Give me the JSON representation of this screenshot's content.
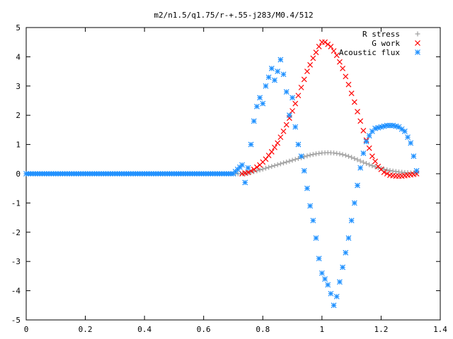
{
  "chart_data": {
    "type": "scatter",
    "title": "m2/n1.5/q1.75/r-+.55-j283/M0.4/512",
    "xlabel": "",
    "ylabel": "",
    "xlim": [
      0,
      1.4
    ],
    "ylim": [
      -5,
      5
    ],
    "x_ticks": [
      "0",
      "0.2",
      "0.4",
      "0.6",
      "0.8",
      "1",
      "1.2",
      "1.4"
    ],
    "y_ticks": [
      "-5",
      "-4",
      "-3",
      "-2",
      "-1",
      "0",
      "1",
      "2",
      "3",
      "4",
      "5"
    ],
    "grid": false,
    "legend_position": "top-right",
    "series": [
      {
        "name": "R stress",
        "marker": "plus",
        "color": "#a0a0a0",
        "points": [
          [
            0.0,
            0
          ],
          [
            0.1,
            0
          ],
          [
            0.2,
            0
          ],
          [
            0.3,
            0
          ],
          [
            0.4,
            0
          ],
          [
            0.5,
            0
          ],
          [
            0.6,
            0
          ],
          [
            0.7,
            0
          ],
          [
            0.74,
            0.0
          ],
          [
            0.76,
            0.05
          ],
          [
            0.78,
            0.1
          ],
          [
            0.8,
            0.16
          ],
          [
            0.82,
            0.22
          ],
          [
            0.84,
            0.28
          ],
          [
            0.86,
            0.34
          ],
          [
            0.88,
            0.4
          ],
          [
            0.9,
            0.46
          ],
          [
            0.92,
            0.52
          ],
          [
            0.94,
            0.58
          ],
          [
            0.96,
            0.64
          ],
          [
            0.98,
            0.68
          ],
          [
            1.0,
            0.71
          ],
          [
            1.02,
            0.72
          ],
          [
            1.04,
            0.71
          ],
          [
            1.06,
            0.68
          ],
          [
            1.08,
            0.63
          ],
          [
            1.1,
            0.56
          ],
          [
            1.12,
            0.48
          ],
          [
            1.14,
            0.39
          ],
          [
            1.16,
            0.31
          ],
          [
            1.18,
            0.24
          ],
          [
            1.2,
            0.18
          ],
          [
            1.22,
            0.13
          ],
          [
            1.24,
            0.09
          ],
          [
            1.26,
            0.06
          ],
          [
            1.28,
            0.04
          ],
          [
            1.3,
            0.03
          ],
          [
            1.32,
            0.02
          ]
        ]
      },
      {
        "name": "G work",
        "marker": "cross",
        "color": "#ff0000",
        "points": [
          [
            0.73,
            0.0
          ],
          [
            0.75,
            0.05
          ],
          [
            0.77,
            0.15
          ],
          [
            0.79,
            0.3
          ],
          [
            0.81,
            0.5
          ],
          [
            0.83,
            0.75
          ],
          [
            0.85,
            1.05
          ],
          [
            0.87,
            1.45
          ],
          [
            0.89,
            1.9
          ],
          [
            0.91,
            2.4
          ],
          [
            0.93,
            2.95
          ],
          [
            0.95,
            3.5
          ],
          [
            0.97,
            3.95
          ],
          [
            0.99,
            4.35
          ],
          [
            1.0,
            4.5
          ],
          [
            1.01,
            4.5
          ],
          [
            1.03,
            4.35
          ],
          [
            1.05,
            4.05
          ],
          [
            1.07,
            3.6
          ],
          [
            1.09,
            3.05
          ],
          [
            1.11,
            2.45
          ],
          [
            1.13,
            1.8
          ],
          [
            1.15,
            1.15
          ],
          [
            1.17,
            0.6
          ],
          [
            1.19,
            0.25
          ],
          [
            1.21,
            0.05
          ],
          [
            1.23,
            -0.05
          ],
          [
            1.25,
            -0.08
          ],
          [
            1.27,
            -0.08
          ],
          [
            1.29,
            -0.05
          ],
          [
            1.31,
            -0.02
          ],
          [
            1.32,
            0.0
          ]
        ]
      },
      {
        "name": "Acoustic flux",
        "marker": "star",
        "color": "#1e90ff",
        "points": [
          [
            0.0,
            0
          ],
          [
            0.1,
            0
          ],
          [
            0.2,
            0
          ],
          [
            0.3,
            0
          ],
          [
            0.4,
            0
          ],
          [
            0.5,
            0
          ],
          [
            0.6,
            0
          ],
          [
            0.7,
            0
          ],
          [
            0.73,
            0.3
          ],
          [
            0.74,
            -0.3
          ],
          [
            0.75,
            0.2
          ],
          [
            0.76,
            1.0
          ],
          [
            0.77,
            1.8
          ],
          [
            0.78,
            2.3
          ],
          [
            0.79,
            2.6
          ],
          [
            0.8,
            2.4
          ],
          [
            0.81,
            3.0
          ],
          [
            0.82,
            3.3
          ],
          [
            0.83,
            3.6
          ],
          [
            0.84,
            3.2
          ],
          [
            0.85,
            3.5
          ],
          [
            0.86,
            3.9
          ],
          [
            0.87,
            3.4
          ],
          [
            0.88,
            2.8
          ],
          [
            0.89,
            2.0
          ],
          [
            0.9,
            2.6
          ],
          [
            0.91,
            1.6
          ],
          [
            0.92,
            1.0
          ],
          [
            0.93,
            0.6
          ],
          [
            0.94,
            0.1
          ],
          [
            0.95,
            -0.5
          ],
          [
            0.96,
            -1.1
          ],
          [
            0.97,
            -1.6
          ],
          [
            0.98,
            -2.2
          ],
          [
            0.99,
            -2.9
          ],
          [
            1.0,
            -3.4
          ],
          [
            1.01,
            -3.6
          ],
          [
            1.02,
            -3.8
          ],
          [
            1.03,
            -4.1
          ],
          [
            1.04,
            -4.5
          ],
          [
            1.05,
            -4.2
          ],
          [
            1.06,
            -3.7
          ],
          [
            1.07,
            -3.2
          ],
          [
            1.08,
            -2.7
          ],
          [
            1.09,
            -2.2
          ],
          [
            1.1,
            -1.6
          ],
          [
            1.11,
            -1.0
          ],
          [
            1.12,
            -0.4
          ],
          [
            1.13,
            0.2
          ],
          [
            1.14,
            0.7
          ],
          [
            1.15,
            1.1
          ],
          [
            1.16,
            1.3
          ],
          [
            1.17,
            1.45
          ],
          [
            1.18,
            1.55
          ],
          [
            1.2,
            1.6
          ],
          [
            1.22,
            1.65
          ],
          [
            1.24,
            1.65
          ],
          [
            1.26,
            1.6
          ],
          [
            1.28,
            1.45
          ],
          [
            1.3,
            1.05
          ],
          [
            1.31,
            0.6
          ],
          [
            1.32,
            0.1
          ]
        ]
      }
    ]
  }
}
